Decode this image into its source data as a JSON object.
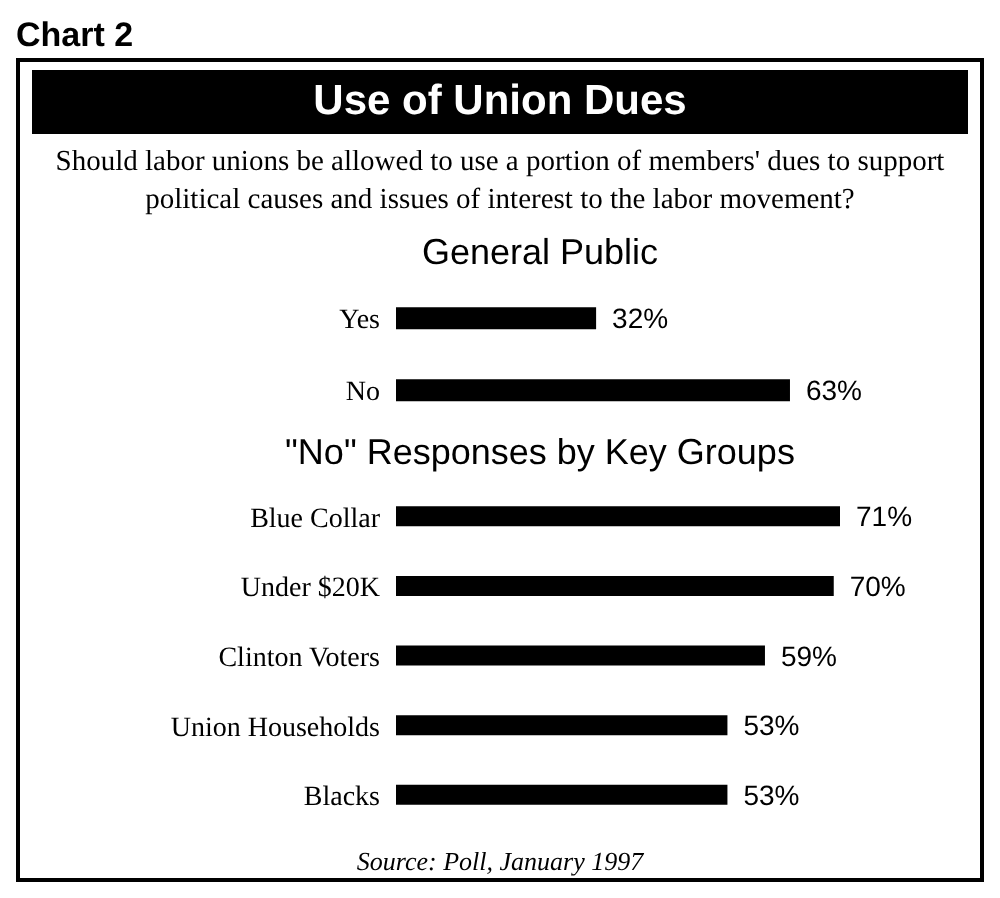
{
  "chart_data": [
    {
      "type": "other",
      "title": "Use of Union Dues",
      "subtitle": "Should labor unions be allowed to use a portion of members' dues to support political causes and issues of interest to the labor movement?",
      "annotations": [
        "Chart 2"
      ]
    },
    {
      "type": "bar",
      "orientation": "horizontal",
      "title": "General Public",
      "categories": [
        "Yes",
        "No"
      ],
      "values": [
        32,
        63
      ],
      "value_labels": [
        "32%",
        "63%"
      ],
      "color": "#000000",
      "tick_labels": "y",
      "grid": false,
      "legend": false
    },
    {
      "type": "bar",
      "orientation": "horizontal",
      "title": "\"No\" Responses by Key Groups",
      "categories": [
        "Blue Collar",
        "Under $20K",
        "Clinton Voters",
        "Union Households",
        "Blacks"
      ],
      "values": [
        71,
        70,
        59,
        53,
        53
      ],
      "value_labels": [
        "71%",
        "70%",
        "59%",
        "53%",
        "53%"
      ],
      "color": "#000000",
      "tick_labels": "y",
      "grid": false,
      "legend": false,
      "annotations": [
        "Source: Poll, January 1997"
      ]
    }
  ]
}
